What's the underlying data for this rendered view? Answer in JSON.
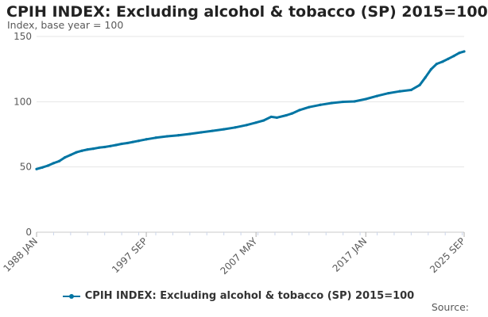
{
  "chart_data": {
    "type": "line",
    "title": "CPIH INDEX: Excluding alcohol & tobacco (SP) 2015=100",
    "subtitle": "Index, base year = 100",
    "xlabel": "",
    "ylabel": "",
    "ylim": [
      0,
      150
    ],
    "y_ticks": [
      "0",
      "50",
      "100",
      "150"
    ],
    "x_tick_labels": [
      "1988 JAN",
      "1997 SEP",
      "2007 MAY",
      "2017 JAN",
      "2025 SEP"
    ],
    "grid": true,
    "legend_position": "bottom",
    "series": [
      {
        "name": "CPIH INDEX: Excluding alcohol & tobacco (SP) 2015=100",
        "color": "#0075a3",
        "points": [
          [
            "1988-01",
            48.4
          ],
          [
            "1988-07",
            49.6
          ],
          [
            "1989-01",
            51.0
          ],
          [
            "1989-07",
            52.9
          ],
          [
            "1990-01",
            54.5
          ],
          [
            "1990-07",
            57.3
          ],
          [
            "1991-01",
            59.2
          ],
          [
            "1991-07",
            61.2
          ],
          [
            "1992-01",
            62.4
          ],
          [
            "1992-07",
            63.4
          ],
          [
            "1993-01",
            64.0
          ],
          [
            "1993-07",
            64.8
          ],
          [
            "1994-01",
            65.3
          ],
          [
            "1994-07",
            66.0
          ],
          [
            "1995-01",
            66.8
          ],
          [
            "1995-07",
            67.7
          ],
          [
            "1996-01",
            68.3
          ],
          [
            "1996-07",
            69.2
          ],
          [
            "1997-01",
            70.0
          ],
          [
            "1997-09",
            71.2
          ],
          [
            "1998-07",
            72.4
          ],
          [
            "1999-07",
            73.5
          ],
          [
            "2000-07",
            74.3
          ],
          [
            "2001-07",
            75.3
          ],
          [
            "2002-07",
            76.5
          ],
          [
            "2003-07",
            77.7
          ],
          [
            "2004-07",
            78.9
          ],
          [
            "2005-07",
            80.3
          ],
          [
            "2006-07",
            82.1
          ],
          [
            "2007-05",
            84.0
          ],
          [
            "2008-01",
            85.6
          ],
          [
            "2008-09",
            88.4
          ],
          [
            "2009-03",
            87.8
          ],
          [
            "2010-01",
            89.6
          ],
          [
            "2010-07",
            91.0
          ],
          [
            "2011-03",
            93.6
          ],
          [
            "2012-01",
            95.8
          ],
          [
            "2013-01",
            97.6
          ],
          [
            "2014-01",
            99.0
          ],
          [
            "2015-01",
            99.9
          ],
          [
            "2016-01",
            100.2
          ],
          [
            "2017-01",
            102.0
          ],
          [
            "2018-01",
            104.4
          ],
          [
            "2019-01",
            106.5
          ],
          [
            "2020-01",
            108.0
          ],
          [
            "2021-01",
            109.0
          ],
          [
            "2021-10",
            112.8
          ],
          [
            "2022-04",
            118.6
          ],
          [
            "2022-10",
            124.8
          ],
          [
            "2023-04",
            129.0
          ],
          [
            "2023-10",
            130.6
          ],
          [
            "2024-04",
            132.8
          ],
          [
            "2024-10",
            135.0
          ],
          [
            "2025-04",
            137.4
          ],
          [
            "2025-09",
            138.5
          ]
        ]
      }
    ]
  },
  "source_label": "Source:"
}
